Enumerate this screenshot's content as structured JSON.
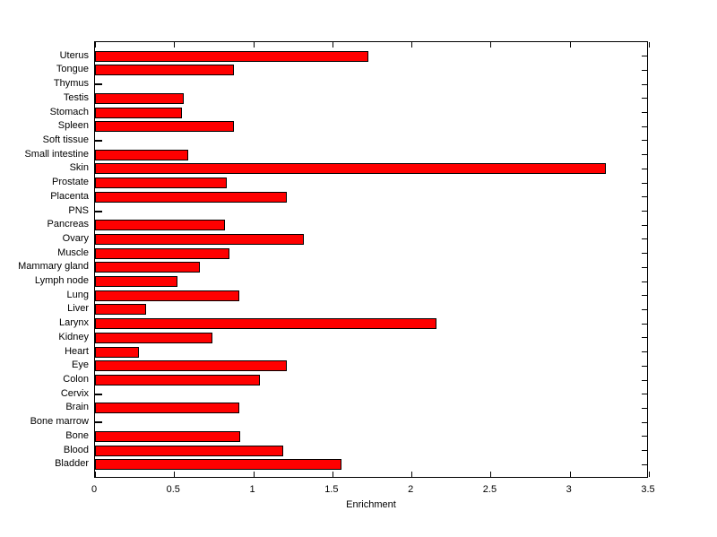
{
  "figure": {
    "background_color": "#ffffff",
    "bar_fill_color": "#ff0000",
    "bar_edge_color": "#000000",
    "axis_color": "#000000",
    "text_color": "#000000"
  },
  "chart_data": {
    "type": "bar",
    "orientation": "horizontal",
    "title": "",
    "xlabel": "Enrichment",
    "ylabel": "",
    "xlim": [
      0,
      3.5
    ],
    "grid": false,
    "legend": null,
    "x_ticks": [
      0,
      0.5,
      1,
      1.5,
      2,
      2.5,
      3,
      3.5
    ],
    "x_tick_labels": [
      "0",
      "0.5",
      "1",
      "1.5",
      "2",
      "2.5",
      "3",
      "3.5"
    ],
    "categories_top_to_bottom": [
      "Uterus",
      "Tongue",
      "Thymus",
      "Testis",
      "Stomach",
      "Spleen",
      "Soft tissue",
      "Small intestine",
      "Skin",
      "Prostate",
      "Placenta",
      "PNS",
      "Pancreas",
      "Ovary",
      "Muscle",
      "Mammary gland",
      "Lymph node",
      "Lung",
      "Liver",
      "Larynx",
      "Kidney",
      "Heart",
      "Eye",
      "Colon",
      "Cervix",
      "Brain",
      "Bone marrow",
      "Bone",
      "Blood",
      "Bladder"
    ],
    "values_top_to_bottom": [
      1.73,
      0.88,
      0,
      0.56,
      0.55,
      0.88,
      0,
      0.59,
      3.23,
      0.83,
      1.21,
      0,
      0.82,
      1.32,
      0.85,
      0.66,
      0.52,
      0.91,
      0.32,
      2.16,
      0.74,
      0.28,
      1.21,
      1.04,
      0,
      0.91,
      0,
      0.92,
      1.19,
      1.56
    ]
  }
}
